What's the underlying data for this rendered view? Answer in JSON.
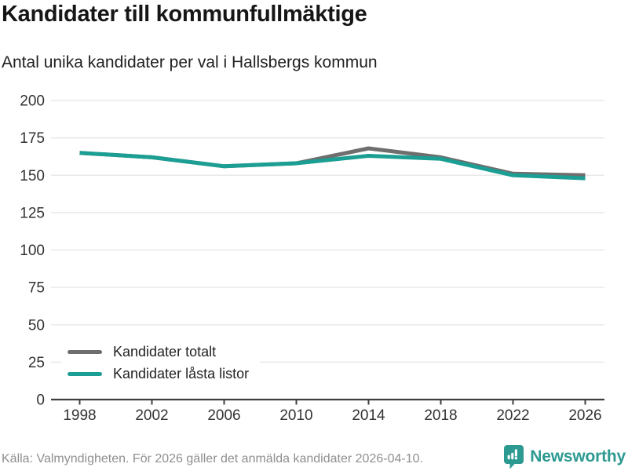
{
  "header": {
    "title": "Kandidater till kommunfullmäktige",
    "subtitle": "Antal unika kandidater per val i Hallsbergs kommun"
  },
  "chart_data": {
    "type": "line",
    "x": [
      1998,
      2002,
      2006,
      2010,
      2014,
      2018,
      2022,
      2026
    ],
    "x_tick_labels": [
      "1998",
      "2002",
      "2006",
      "2010",
      "2014",
      "2018",
      "2022",
      "2026"
    ],
    "series": [
      {
        "name": "Kandidater totalt",
        "color": "#6e6e6e",
        "values": [
          165,
          162,
          156,
          158,
          168,
          162,
          151,
          150
        ]
      },
      {
        "name": "Kandidater låsta listor",
        "color": "#1b9e93",
        "values": [
          165,
          162,
          156,
          158,
          163,
          161,
          150,
          148
        ]
      }
    ],
    "title": "Kandidater till kommunfullmäktige",
    "subtitle": "Antal unika kandidater per val i Hallsbergs kommun",
    "xlabel": "",
    "ylabel": "",
    "ylim": [
      0,
      200
    ],
    "ytick_step": 25,
    "y_tick_labels": [
      "0",
      "25",
      "50",
      "75",
      "100",
      "125",
      "150",
      "175",
      "200"
    ],
    "grid": "horizontal",
    "legend_position": "bottom-left-inside"
  },
  "legend": {
    "items": [
      {
        "label": "Kandidater totalt",
        "color": "#6e6e6e"
      },
      {
        "label": "Kandidater låsta listor",
        "color": "#1b9e93"
      }
    ]
  },
  "footer": {
    "source": "Källa: Valmyndigheten. För 2026 gäller det anmälda kandidater 2026-04-10.",
    "brand": "Newsworthy"
  },
  "colors": {
    "accent_teal": "#1b9e93",
    "series_gray": "#6e6e6e",
    "brand_teal": "#2d9a91",
    "gridline": "#e9e9e9",
    "axis": "#3f3f3f",
    "tick_label": "#333333",
    "source_text": "#8f8f8f"
  }
}
